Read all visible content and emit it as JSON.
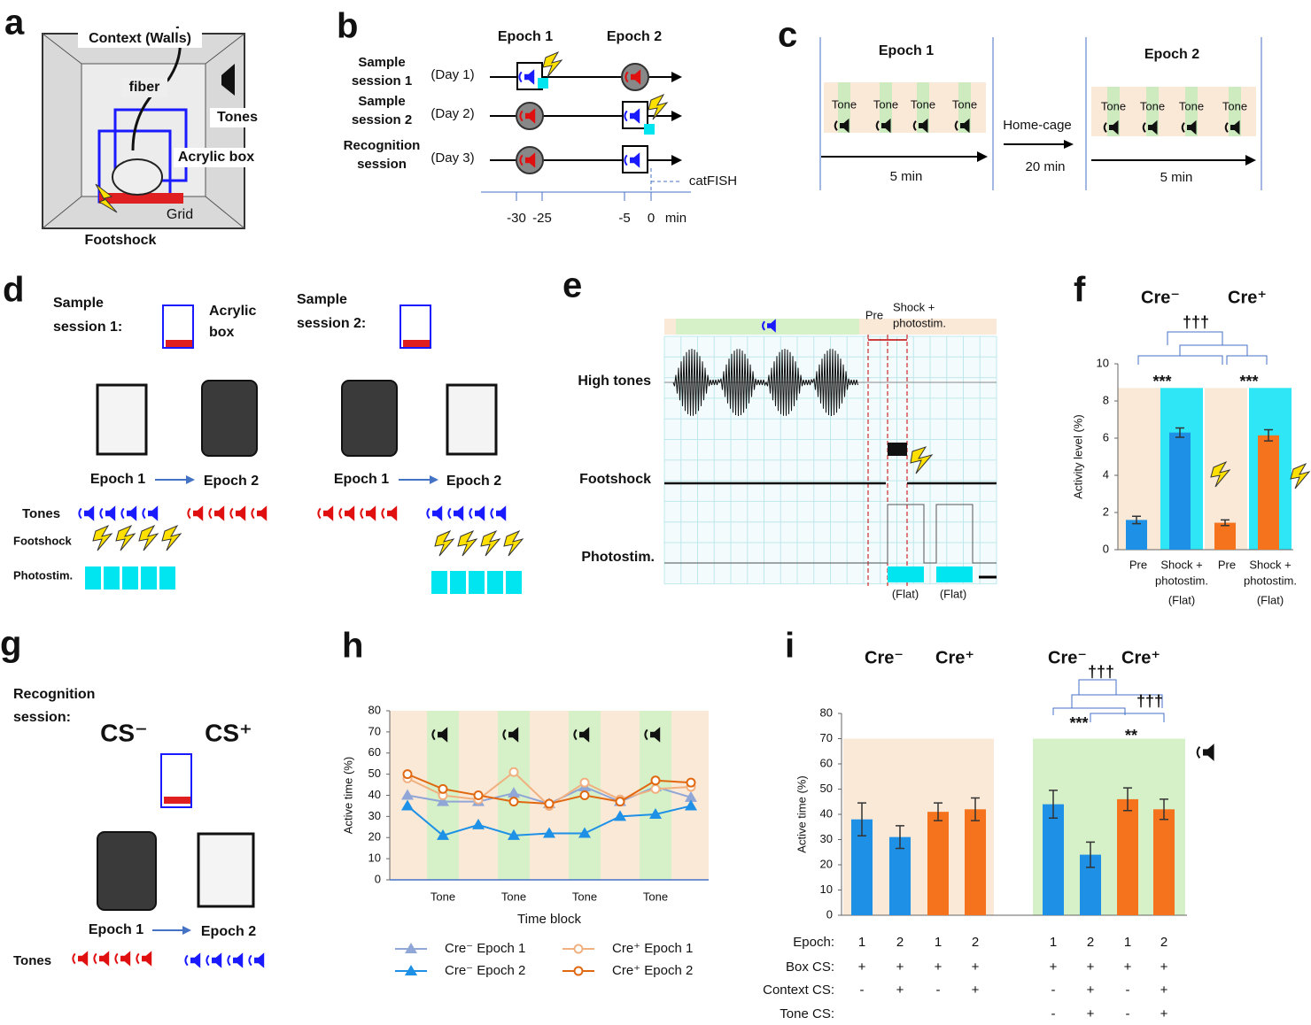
{
  "panels": {
    "a": {
      "letter": "a",
      "context": "Context (Walls)",
      "fiber": "fiber",
      "tones": "Tones",
      "acrylic_box": "Acrylic box",
      "grid": "Grid",
      "footshock": "Footshock"
    },
    "b": {
      "letter": "b",
      "epoch1": "Epoch 1",
      "epoch2": "Epoch 2",
      "sessions": [
        [
          "Sample",
          "session 1"
        ],
        [
          "Sample",
          "session 2"
        ],
        [
          "Recognition",
          "session"
        ]
      ],
      "days": [
        "(Day 1)",
        "(Day 2)",
        "(Day 3)"
      ],
      "catfish": "catFISH",
      "times": [
        -30,
        -25,
        -5,
        0
      ],
      "unit": "min"
    },
    "c": {
      "letter": "c",
      "epoch1": "Epoch 1",
      "epoch2": "Epoch 2",
      "tone": "Tone",
      "home_cage": "Home-cage",
      "gap": "20 min",
      "duration": "5 min"
    },
    "d": {
      "letter": "d",
      "session1": [
        "Sample",
        "session 1:"
      ],
      "session2": [
        "Sample",
        "session 2:"
      ],
      "acrylic_box": [
        "Acrylic",
        "box"
      ],
      "epoch1": "Epoch 1",
      "epoch2": "Epoch 2",
      "rows": [
        "Tones",
        "Footshock",
        "Photostim."
      ]
    },
    "e": {
      "letter": "e",
      "pre": "Pre",
      "shock": [
        "Shock +",
        "photostim."
      ],
      "traces": [
        "High tones",
        "Footshock",
        "Photostim."
      ],
      "flat": "(Flat)"
    },
    "g": {
      "letter": "g",
      "title": [
        "Recognition",
        "session:"
      ],
      "cs_minus": "CS⁻",
      "cs_plus": "CS⁺",
      "epoch1": "Epoch 1",
      "epoch2": "Epoch 2",
      "tones": "Tones"
    }
  },
  "chart_data": [
    {
      "type": "bar",
      "letter": "f",
      "ylabel": "Activity level (%)",
      "categories": [
        "Pre",
        [
          "Shock +",
          "photostim."
        ],
        "Pre",
        [
          "Shock +",
          "photostim."
        ]
      ],
      "sublabels": [
        null,
        "(Flat)",
        null,
        "(Flat)"
      ],
      "values": [
        1.6,
        6.3,
        1.45,
        6.15
      ],
      "errors": [
        0.2,
        0.25,
        0.15,
        0.3
      ],
      "colors": [
        "#1e90e6",
        "#1e90e6",
        "#f5731c",
        "#f5731c"
      ],
      "group_labels": [
        "Cre⁻",
        "Cre⁺"
      ],
      "annotations": [
        "†††",
        "***",
        "***"
      ],
      "ylim": [
        0,
        10
      ],
      "yticks": [
        0,
        2,
        4,
        6,
        8,
        10
      ]
    },
    {
      "type": "line",
      "letter": "h",
      "ylabel": "Active time (%)",
      "xlabel": "Time block",
      "categories": [
        null,
        "Tone",
        null,
        "Tone",
        null,
        "Tone",
        null,
        "Tone",
        null
      ],
      "series": [
        {
          "name": "Cre⁻ Epoch 1",
          "color": "#8fa6d6",
          "marker": "triangle",
          "values": [
            40,
            37,
            37,
            41,
            36,
            44,
            37,
            44,
            39
          ]
        },
        {
          "name": "Cre⁻ Epoch 2",
          "color": "#1e90e6",
          "marker": "triangle",
          "values": [
            35,
            21,
            26,
            21,
            22,
            22,
            30,
            31,
            35
          ]
        },
        {
          "name": "Cre⁺ Epoch 1",
          "color": "#f0b080",
          "marker": "circle",
          "values": [
            48,
            40,
            38,
            51,
            35,
            46,
            38,
            43,
            44
          ]
        },
        {
          "name": "Cre⁺ Epoch 2",
          "color": "#e06810",
          "marker": "circle",
          "values": [
            50,
            43,
            40,
            37,
            36,
            40,
            37,
            47,
            46
          ]
        }
      ],
      "ylim": [
        0,
        80
      ],
      "yticks": [
        0,
        10,
        20,
        30,
        40,
        50,
        60,
        70,
        80
      ]
    },
    {
      "type": "bar",
      "letter": "i",
      "ylabel": "Active time (%)",
      "values": [
        38,
        31,
        41,
        42,
        44,
        24,
        46,
        42
      ],
      "errors": [
        6.5,
        4.5,
        3.5,
        4.5,
        5.5,
        5,
        4.5,
        4
      ],
      "colors": [
        "#1e90e6",
        "#1e90e6",
        "#f5731c",
        "#f5731c",
        "#1e90e6",
        "#1e90e6",
        "#f5731c",
        "#f5731c"
      ],
      "group_labels": [
        "Cre⁻",
        "Cre⁺",
        "Cre⁻",
        "Cre⁺"
      ],
      "annotations": [
        "†††",
        "†††",
        "***",
        "**"
      ],
      "table": [
        {
          "label": "Epoch:",
          "cells": [
            1,
            2,
            1,
            2,
            1,
            2,
            1,
            2
          ]
        },
        {
          "label": "Box CS:",
          "cells": [
            "+",
            "+",
            "+",
            "+",
            "+",
            "+",
            "+",
            "+"
          ]
        },
        {
          "label": "Context CS:",
          "cells": [
            "-",
            "+",
            "-",
            "+",
            "-",
            "+",
            "-",
            "+"
          ]
        },
        {
          "label": "Tone CS:",
          "cells": [
            null,
            null,
            null,
            null,
            "-",
            "+",
            "-",
            "+"
          ]
        }
      ],
      "ylim": [
        0,
        80
      ],
      "yticks": [
        0,
        10,
        20,
        30,
        40,
        50,
        60,
        70,
        80
      ]
    }
  ]
}
